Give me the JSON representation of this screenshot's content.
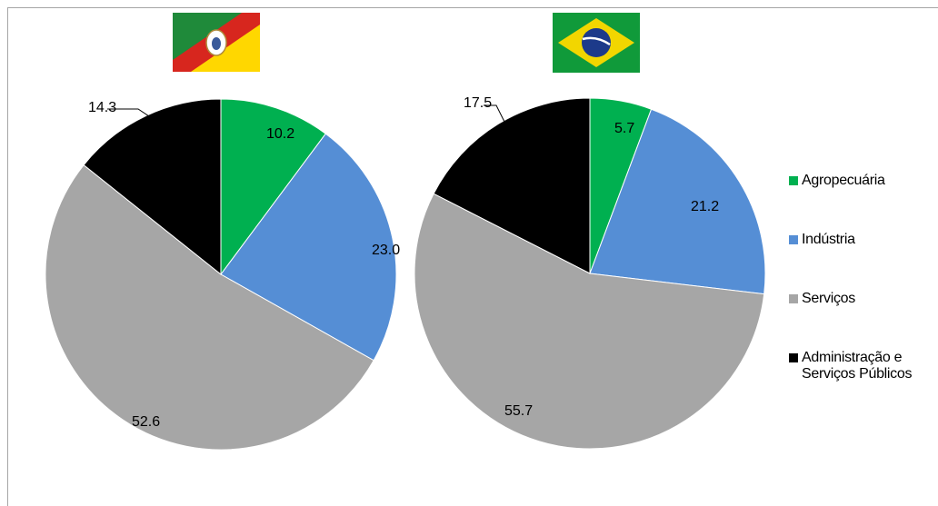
{
  "colors": {
    "agropecuaria": "#00b050",
    "industria": "#558ed5",
    "servicos": "#a6a6a6",
    "administracao": "#000000",
    "frame": "#a6a6a6"
  },
  "flags": [
    {
      "icon": "rio-grande-do-sul-flag-icon"
    },
    {
      "icon": "brazil-flag-icon"
    }
  ],
  "chart_data": [
    {
      "type": "pie",
      "title": "",
      "categories": [
        "Agropecuária",
        "Indústria",
        "Serviços",
        "Administração e Serviços Públicos"
      ],
      "values": [
        10.2,
        23.0,
        52.6,
        14.3
      ],
      "labels": [
        "10.2",
        "23.0",
        "52.6",
        "14.3"
      ],
      "start_angle_deg": 0,
      "direction": "clockwise"
    },
    {
      "type": "pie",
      "title": "",
      "categories": [
        "Agropecuária",
        "Indústria",
        "Serviços",
        "Administração e Serviços Públicos"
      ],
      "values": [
        5.7,
        21.2,
        55.7,
        17.5
      ],
      "labels": [
        "5.7",
        "21.2",
        "55.7",
        "17.5"
      ],
      "start_angle_deg": 0,
      "direction": "clockwise"
    }
  ],
  "legend": {
    "placement": "right",
    "items": [
      {
        "key": "agropecuaria",
        "label": "Agropecuária"
      },
      {
        "key": "industria",
        "label": "Indústria"
      },
      {
        "key": "servicos",
        "label": "Serviços"
      },
      {
        "key": "administracao",
        "label": "Administração e\nServiços Públicos"
      }
    ]
  }
}
